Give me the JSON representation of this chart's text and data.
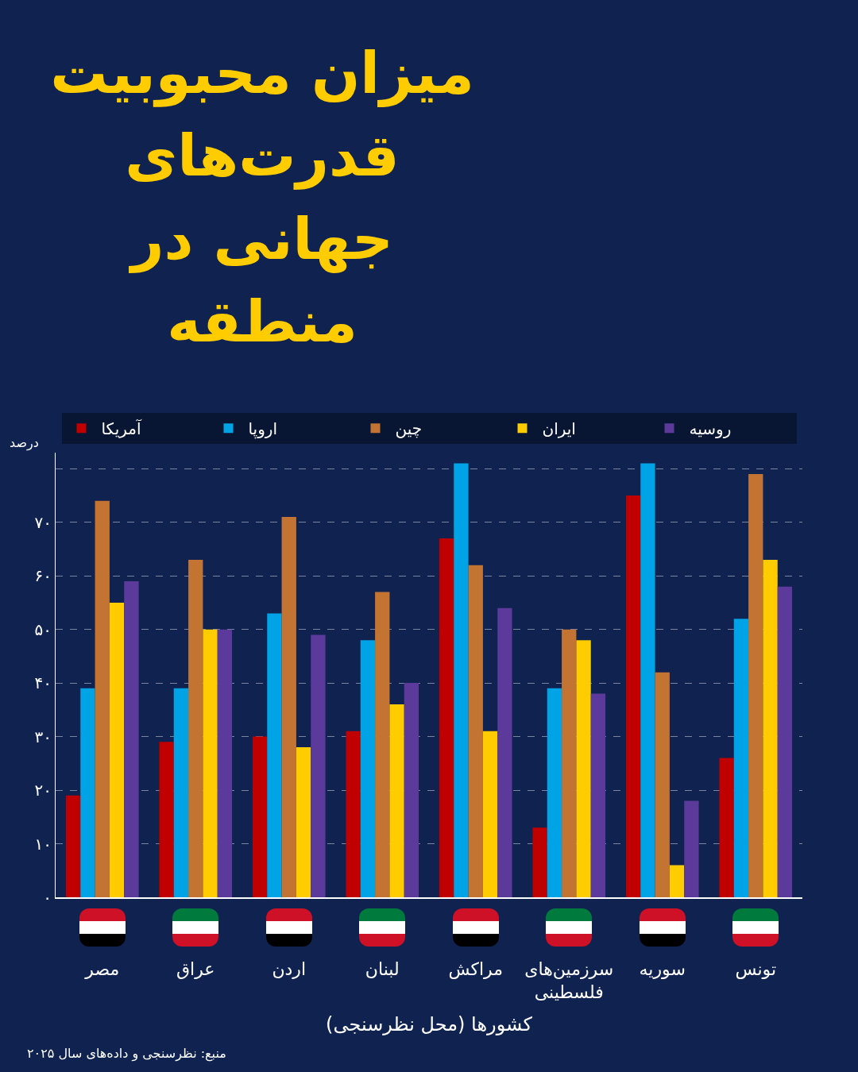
{
  "chart_data": {
    "type": "bar",
    "title": "میزان محبوبیت قدرت‌های جهانی در منطقه",
    "xlabel": "کشورها (محل نظرسنجی)",
    "ylabel": "درصد",
    "categories": [
      "مصر",
      "عراق",
      "اردن",
      "لبنان",
      "مراکش",
      "سرزمین‌های فلسطینی",
      "سوریه",
      "تونس"
    ],
    "series": [
      {
        "name": "آمریکا",
        "color": "#c00000",
        "values": [
          19,
          29,
          30,
          31,
          67,
          13,
          75,
          26
        ]
      },
      {
        "name": "اروپا",
        "color": "#00a3e6",
        "values": [
          39,
          39,
          53,
          48,
          81,
          39,
          81,
          52
        ]
      },
      {
        "name": "چین",
        "color": "#c47432",
        "values": [
          74,
          63,
          71,
          57,
          62,
          50,
          42,
          79
        ]
      },
      {
        "name": "ایران",
        "color": "#ffcc00",
        "values": [
          55,
          50,
          28,
          36,
          31,
          48,
          6,
          63
        ]
      },
      {
        "name": "روسیه",
        "color": "#5b3a9b",
        "values": [
          59,
          50,
          49,
          40,
          54,
          38,
          18,
          58
        ]
      }
    ],
    "ylim": [
      0,
      83
    ],
    "yticks": [
      {
        "value": 0,
        "label": "۰"
      },
      {
        "value": 10,
        "label": "۱۰"
      },
      {
        "value": 20,
        "label": "۲۰"
      },
      {
        "value": 30,
        "label": "۳۰"
      },
      {
        "value": 40,
        "label": "۴۰"
      },
      {
        "value": 50,
        "label": "۵۰"
      },
      {
        "value": 60,
        "label": "۶۰"
      },
      {
        "value": 70,
        "label": "۷۰"
      },
      {
        "value": 80,
        "label": null
      }
    ],
    "grid": "y",
    "legend": "top",
    "annotations": [
      "منبع: نظرسنجی و داده‌های سال ۲۰۲۵"
    ]
  }
}
